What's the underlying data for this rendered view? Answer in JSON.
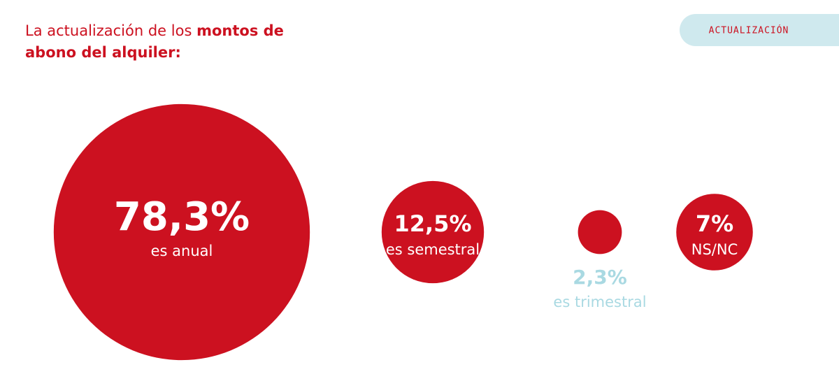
{
  "chart_data": {
    "type": "bubble",
    "title": "La actualización de los",
    "title_emphasis_1": "montos de",
    "title_emphasis_2": "abono del alquiler:",
    "tag": "ACTUALIZACIÓN",
    "categories": [
      "es anual",
      "es semestral",
      "es trimestral",
      "NS/NC"
    ],
    "values": [
      78.3,
      12.5,
      2.3,
      7
    ],
    "value_labels": [
      "78,3%",
      "12,5%",
      "2,3%",
      "7%"
    ],
    "color": "#cc1120"
  }
}
